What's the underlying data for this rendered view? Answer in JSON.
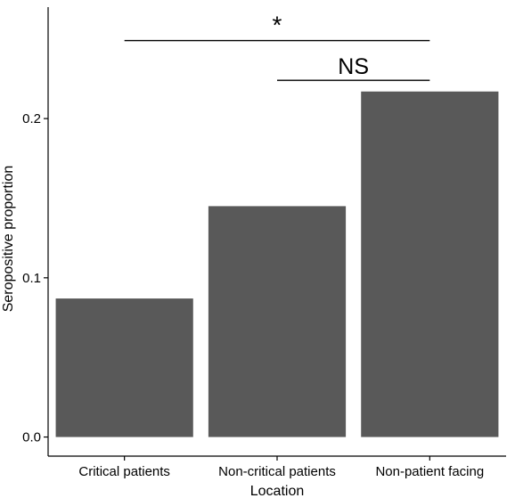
{
  "chart_data": {
    "type": "bar",
    "categories": [
      "Critical patients",
      "Non-critical patients",
      "Non-patient facing"
    ],
    "values": [
      0.087,
      0.145,
      0.217
    ],
    "xlabel": "Location",
    "ylabel": "Seropositive proportion",
    "ylim": [
      -0.012,
      0.27
    ],
    "yticks": [
      0.0,
      0.1,
      0.2
    ],
    "ytick_labels": [
      "0.0",
      "0.1",
      "0.2"
    ],
    "bar_color": "#595959",
    "grid": false,
    "legend": "none",
    "annotations": [
      {
        "label": "*",
        "from": "Critical patients",
        "to": "Non-patient facing",
        "y": 0.249
      },
      {
        "label": "NS",
        "from": "Non-critical patients",
        "to": "Non-patient facing",
        "y": 0.224
      }
    ]
  }
}
